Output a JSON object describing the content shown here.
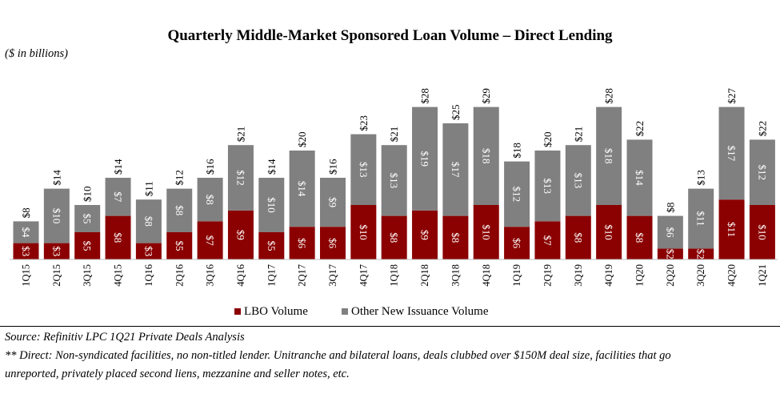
{
  "page": {
    "title": "Quarterly Middle-Market Sponsored Loan Volume – Direct Lending",
    "unit_label": "($ in billions)",
    "source": "Source: Refinitiv LPC 1Q21 Private Deals Analysis",
    "footnote_line1": "** Direct: Non-syndicated facilities, no non-titled lender. Unitranche and bilateral loans, deals clubbed over $150M deal size, facilities that go",
    "footnote_line2": "unreported, privately placed second liens, mezzanine and seller notes, etc."
  },
  "chart_data": {
    "type": "bar",
    "stacked": true,
    "title": "Quarterly Middle-Market Sponsored Loan Volume – Direct Lending",
    "ylabel": "",
    "xlabel": "",
    "ylim": [
      0,
      30
    ],
    "grid": false,
    "legend": "bottom",
    "categories": [
      "1Q15",
      "2Q15",
      "3Q15",
      "4Q15",
      "1Q16",
      "2Q16",
      "3Q16",
      "4Q16",
      "1Q17",
      "2Q17",
      "3Q17",
      "4Q17",
      "1Q18",
      "2Q18",
      "3Q18",
      "4Q18",
      "1Q19",
      "2Q19",
      "3Q19",
      "4Q19",
      "1Q20",
      "2Q20",
      "3Q20",
      "4Q20",
      "1Q21"
    ],
    "series": [
      {
        "name": "LBO Volume",
        "color": "#8b0000",
        "values": [
          3,
          3,
          5,
          8,
          3,
          5,
          7,
          9,
          5,
          6,
          6,
          10,
          8,
          9,
          8,
          10,
          6,
          7,
          8,
          10,
          8,
          2,
          2,
          11,
          10
        ],
        "labels": [
          "$3",
          "$3",
          "$5",
          "$8",
          "$3",
          "$5",
          "$7",
          "$9",
          "$5",
          "$6",
          "$6",
          "$10",
          "$8",
          "$9",
          "$8",
          "$10",
          "$6",
          "$7",
          "$8",
          "$10",
          "$8",
          "$2",
          "$2",
          "$11",
          "$10"
        ]
      },
      {
        "name": "Other New Issuance Volume",
        "color": "#808080",
        "values": [
          4,
          10,
          5,
          7,
          8,
          8,
          8,
          12,
          10,
          14,
          9,
          13,
          13,
          19,
          17,
          18,
          12,
          13,
          13,
          18,
          14,
          6,
          11,
          17,
          12
        ],
        "labels": [
          "$4",
          "$10",
          "$5",
          "$7",
          "$8",
          "$8",
          "$8",
          "$12",
          "$10",
          "$14",
          "$9",
          "$13",
          "$13",
          "$19",
          "$17",
          "$18",
          "$12",
          "$13",
          "$13",
          "$18",
          "$14",
          "$6",
          "$11",
          "$17",
          "$12"
        ]
      }
    ],
    "totals": [
      8,
      14,
      10,
      14,
      11,
      12,
      16,
      21,
      14,
      20,
      16,
      23,
      21,
      28,
      25,
      29,
      18,
      20,
      21,
      28,
      22,
      8,
      13,
      27,
      22
    ],
    "total_labels": [
      "$8",
      "$14",
      "$10",
      "$14",
      "$11",
      "$12",
      "$16",
      "$21",
      "$14",
      "$20",
      "$16",
      "$23",
      "$21",
      "$28",
      "$25",
      "$29",
      "$18",
      "$20",
      "$21",
      "$28",
      "$22",
      "$8",
      "$13",
      "$27",
      "$22"
    ]
  }
}
